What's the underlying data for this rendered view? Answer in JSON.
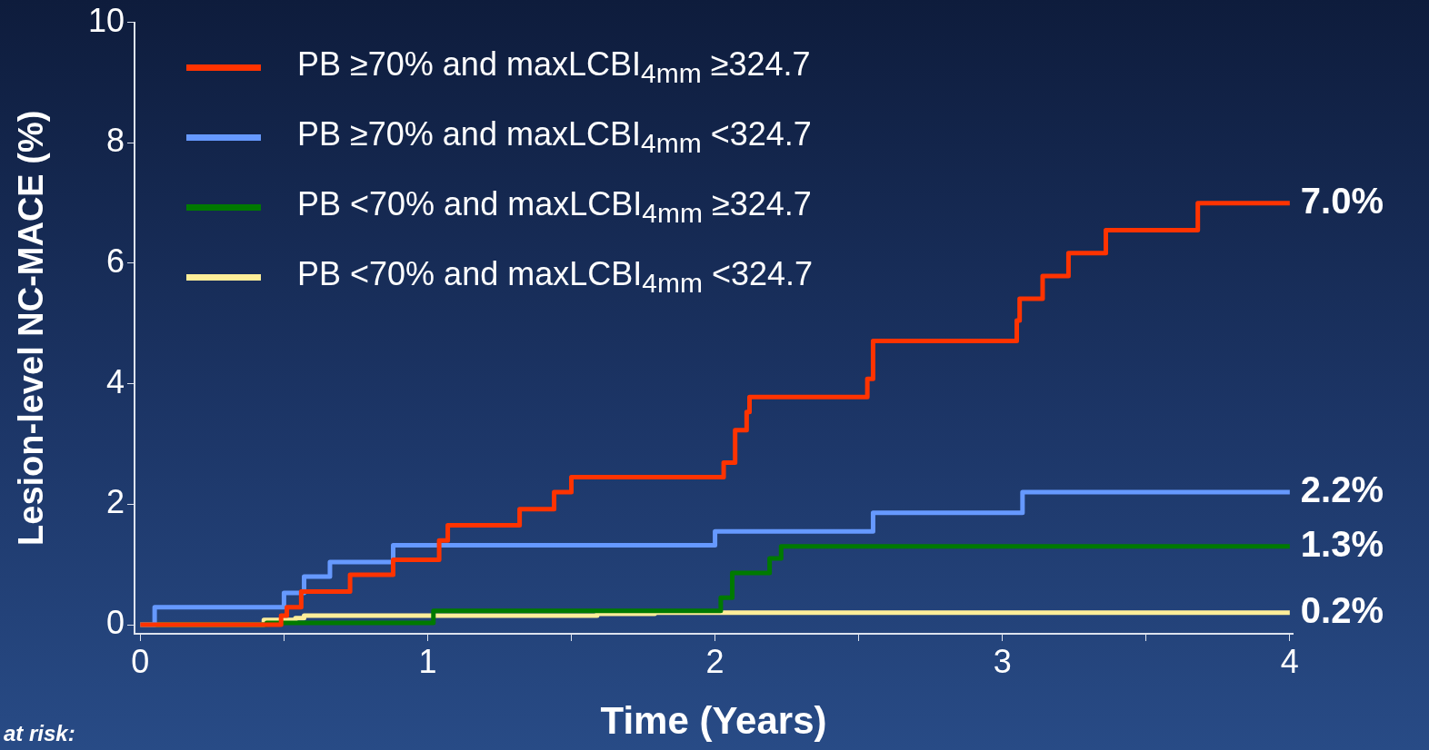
{
  "chart_data": {
    "type": "step",
    "xlabel": "Time (Years)",
    "ylabel": "Lesion-level NC-MACE (%)",
    "xlim": [
      -0.02,
      4.01
    ],
    "ylim": [
      -0.15,
      10
    ],
    "xticks": [
      0,
      {
        "value": 0.5,
        "label": null
      },
      1,
      {
        "value": 1.5,
        "label": null
      },
      2,
      {
        "value": 2.5,
        "label": null
      },
      3,
      {
        "value": 3.5,
        "label": null
      },
      4
    ],
    "yticks": [
      0,
      2,
      4,
      6,
      8,
      10
    ],
    "legend": "top left",
    "series": [
      {
        "name": "PB ≥70% and maxLCBI$_{4mm}$ ≥324.7",
        "color": "#ff3300",
        "x": [
          0,
          0.49,
          0.51,
          0.56,
          0.73,
          0.88,
          1.04,
          1.07,
          1.32,
          1.44,
          1.5,
          2.03,
          2.07,
          2.11,
          2.12,
          2.53,
          2.55,
          3.05,
          3.06,
          3.14,
          3.23,
          3.36,
          3.68,
          4
        ],
        "values": [
          0,
          0.15,
          0.29,
          0.55,
          0.83,
          1.08,
          1.4,
          1.65,
          1.92,
          2.2,
          2.45,
          2.69,
          3.23,
          3.53,
          3.78,
          4.08,
          4.71,
          5.05,
          5.41,
          5.79,
          6.17,
          6.55,
          7.0,
          7.0
        ],
        "value_labels": [
          null,
          null,
          null,
          null,
          null,
          null,
          null,
          null,
          null,
          null,
          null,
          null,
          null,
          null,
          null,
          null,
          null,
          null,
          null,
          null,
          null,
          null,
          null,
          "7.0%"
        ]
      },
      {
        "name": "PB ≥70% and maxLCBI$_{4mm}$ <324.7",
        "color": "#6699ff",
        "x": [
          0,
          0.05,
          0.5,
          0.57,
          0.66,
          0.88,
          2.0,
          2.55,
          3.07,
          4
        ],
        "values": [
          0,
          0.29,
          0.53,
          0.8,
          1.04,
          1.32,
          1.55,
          1.86,
          2.2,
          2.2
        ],
        "value_labels": [
          null,
          null,
          null,
          null,
          null,
          null,
          null,
          null,
          null,
          "2.2%"
        ]
      },
      {
        "name": "PB <70% and maxLCBI$_{4mm}$ ≥324.7",
        "color": "#007a00",
        "x": [
          0,
          0.44,
          1.02,
          2.02,
          2.06,
          2.19,
          2.23,
          4
        ],
        "values": [
          0,
          0.03,
          0.23,
          0.45,
          0.86,
          1.1,
          1.3,
          1.3
        ],
        "value_labels": [
          null,
          null,
          null,
          null,
          null,
          null,
          null,
          "1.3%"
        ]
      },
      {
        "name": "PB <70% and maxLCBI$_{4mm}$ <324.7",
        "color": "#ffee99",
        "x": [
          0,
          0.43,
          0.54,
          0.57,
          1.59,
          1.79,
          4
        ],
        "values": [
          0,
          0.08,
          0.11,
          0.15,
          0.18,
          0.2,
          0.2
        ],
        "value_labels": [
          null,
          null,
          null,
          null,
          null,
          null,
          "0.2%"
        ]
      }
    ],
    "annotations": [
      "at risk:"
    ]
  }
}
